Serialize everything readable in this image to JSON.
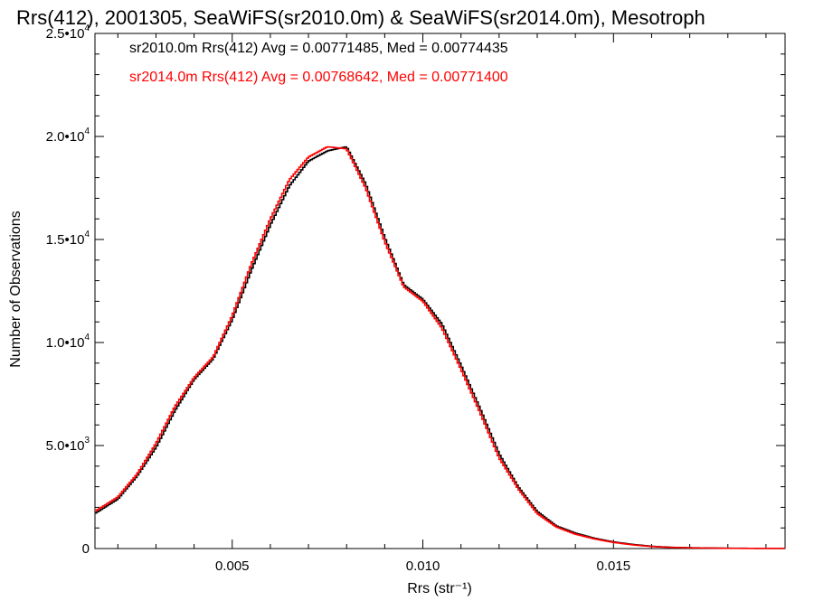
{
  "chart_data": {
    "type": "line",
    "step": true,
    "title": "Rrs(412), 2001305, SeaWiFS(sr2010.0m) & SeaWiFS(sr2014.0m), Mesotroph",
    "xlabel": "Rrs (str⁻¹)",
    "ylabel": "Number of Observations",
    "xlim": [
      0.0014,
      0.0195
    ],
    "ylim": [
      0,
      25000
    ],
    "xticks": [
      {
        "value": 0.005,
        "label": "0.005"
      },
      {
        "value": 0.01,
        "label": "0.010"
      },
      {
        "value": 0.015,
        "label": "0.015"
      }
    ],
    "yticks": [
      {
        "value": 0,
        "mantissa": "0",
        "exp": ""
      },
      {
        "value": 5000,
        "mantissa": "5.0•10",
        "exp": "3"
      },
      {
        "value": 10000,
        "mantissa": "1.0•10",
        "exp": "4"
      },
      {
        "value": 15000,
        "mantissa": "1.5•10",
        "exp": "4"
      },
      {
        "value": 20000,
        "mantissa": "2.0•10",
        "exp": "4"
      },
      {
        "value": 25000,
        "mantissa": "2.5•10",
        "exp": "4"
      }
    ],
    "grid": false,
    "legend_position": "top-left",
    "series": [
      {
        "name": "sr2010.0m Rrs(412) Avg = 0.00771485, Med = 0.00774435",
        "color": "#000000",
        "x": [
          0.0014,
          0.002,
          0.0025,
          0.003,
          0.0035,
          0.004,
          0.0045,
          0.005,
          0.0055,
          0.006,
          0.0065,
          0.007,
          0.0075,
          0.008,
          0.0085,
          0.009,
          0.0095,
          0.01,
          0.0105,
          0.011,
          0.0115,
          0.012,
          0.0125,
          0.013,
          0.0135,
          0.014,
          0.0145,
          0.015,
          0.0155,
          0.016,
          0.0165,
          0.017,
          0.018,
          0.0195
        ],
        "y": [
          1700,
          2400,
          3500,
          4900,
          6700,
          8200,
          9200,
          11100,
          13500,
          15700,
          17600,
          18800,
          19300,
          19500,
          17700,
          15100,
          12800,
          12100,
          10900,
          8900,
          6800,
          4600,
          3000,
          1800,
          1100,
          750,
          500,
          320,
          200,
          110,
          60,
          40,
          15,
          5
        ]
      },
      {
        "name": "sr2014.0m Rrs(412) Avg = 0.00768642, Med = 0.00771400",
        "color": "#ff0000",
        "x": [
          0.0014,
          0.002,
          0.0025,
          0.003,
          0.0035,
          0.004,
          0.0045,
          0.005,
          0.0055,
          0.006,
          0.0065,
          0.007,
          0.0075,
          0.008,
          0.0085,
          0.009,
          0.0095,
          0.01,
          0.0105,
          0.011,
          0.0115,
          0.012,
          0.0125,
          0.013,
          0.0135,
          0.014,
          0.0145,
          0.015,
          0.0155,
          0.016,
          0.0165,
          0.017,
          0.018,
          0.0195
        ],
        "y": [
          1800,
          2500,
          3600,
          5100,
          6900,
          8300,
          9300,
          11300,
          13800,
          16000,
          17900,
          19000,
          19500,
          19400,
          17500,
          14900,
          12700,
          12000,
          10700,
          8700,
          6600,
          4400,
          2900,
          1700,
          1050,
          700,
          470,
          300,
          180,
          100,
          55,
          35,
          12,
          5
        ]
      }
    ]
  }
}
